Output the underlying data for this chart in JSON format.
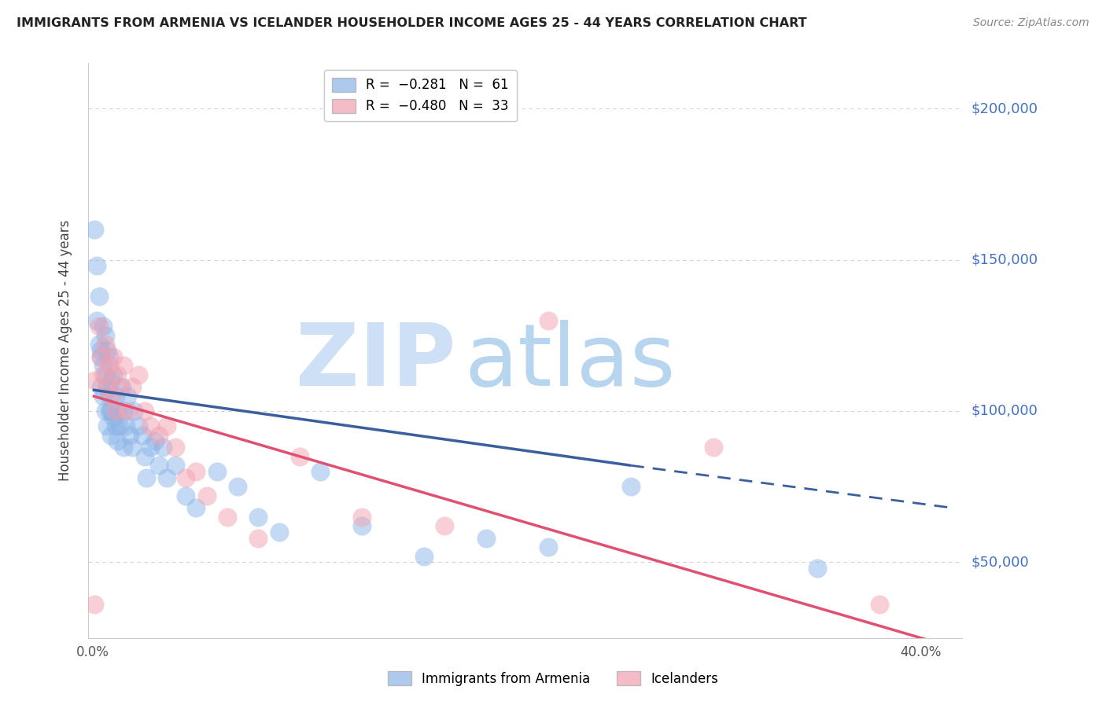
{
  "title": "IMMIGRANTS FROM ARMENIA VS ICELANDER HOUSEHOLDER INCOME AGES 25 - 44 YEARS CORRELATION CHART",
  "source": "Source: ZipAtlas.com",
  "ylabel": "Householder Income Ages 25 - 44 years",
  "y_tick_labels": [
    "$50,000",
    "$100,000",
    "$150,000",
    "$200,000"
  ],
  "y_tick_values": [
    50000,
    100000,
    150000,
    200000
  ],
  "ylim": [
    25000,
    215000
  ],
  "xlim": [
    -0.002,
    0.42
  ],
  "legend_label_armenia": "Immigrants from Armenia",
  "legend_label_icelander": "Icelanders",
  "blue_color": "#8ab4e8",
  "pink_color": "#f2a0b0",
  "blue_line_color": "#3a5fa0",
  "pink_line_color": "#e05070",
  "watermark_zip": "ZIP",
  "watermark_atlas": "atlas",
  "watermark_color_zip": "#c8dff5",
  "watermark_color_atlas": "#b8d5f0",
  "armenia_trend_x0": 0.0,
  "armenia_trend_y0": 107000,
  "armenia_trend_x1": 0.26,
  "armenia_trend_y1": 82000,
  "armenia_trend_dash_x0": 0.26,
  "armenia_trend_dash_y0": 82000,
  "armenia_trend_dash_x1": 0.415,
  "armenia_trend_dash_y1": 68000,
  "icelander_trend_x0": 0.0,
  "icelander_trend_y0": 105000,
  "icelander_trend_x1": 0.415,
  "icelander_trend_y1": 22000,
  "armenia_x": [
    0.001,
    0.002,
    0.002,
    0.003,
    0.003,
    0.004,
    0.004,
    0.004,
    0.005,
    0.005,
    0.005,
    0.006,
    0.006,
    0.006,
    0.007,
    0.007,
    0.007,
    0.008,
    0.008,
    0.008,
    0.009,
    0.009,
    0.009,
    0.01,
    0.01,
    0.011,
    0.011,
    0.012,
    0.012,
    0.013,
    0.014,
    0.015,
    0.015,
    0.016,
    0.017,
    0.018,
    0.019,
    0.02,
    0.022,
    0.024,
    0.025,
    0.026,
    0.028,
    0.03,
    0.032,
    0.034,
    0.036,
    0.04,
    0.045,
    0.05,
    0.06,
    0.07,
    0.08,
    0.09,
    0.11,
    0.13,
    0.16,
    0.19,
    0.22,
    0.26,
    0.35
  ],
  "armenia_y": [
    160000,
    148000,
    130000,
    138000,
    122000,
    120000,
    118000,
    108000,
    128000,
    115000,
    105000,
    125000,
    112000,
    100000,
    120000,
    108000,
    95000,
    118000,
    105000,
    100000,
    110000,
    100000,
    92000,
    112000,
    98000,
    105000,
    95000,
    100000,
    90000,
    95000,
    108000,
    100000,
    88000,
    95000,
    105000,
    92000,
    88000,
    100000,
    95000,
    92000,
    85000,
    78000,
    88000,
    90000,
    82000,
    88000,
    78000,
    82000,
    72000,
    68000,
    80000,
    75000,
    65000,
    60000,
    80000,
    62000,
    52000,
    58000,
    55000,
    75000,
    48000
  ],
  "icelander_x": [
    0.001,
    0.003,
    0.004,
    0.005,
    0.006,
    0.007,
    0.008,
    0.009,
    0.01,
    0.011,
    0.012,
    0.013,
    0.015,
    0.017,
    0.019,
    0.022,
    0.025,
    0.028,
    0.032,
    0.036,
    0.04,
    0.045,
    0.05,
    0.055,
    0.065,
    0.08,
    0.1,
    0.13,
    0.17,
    0.22,
    0.3,
    0.38,
    0.001
  ],
  "icelander_y": [
    110000,
    128000,
    118000,
    112000,
    122000,
    108000,
    115000,
    105000,
    118000,
    100000,
    112000,
    108000,
    115000,
    100000,
    108000,
    112000,
    100000,
    95000,
    92000,
    95000,
    88000,
    78000,
    80000,
    72000,
    65000,
    58000,
    85000,
    65000,
    62000,
    130000,
    88000,
    36000,
    36000
  ]
}
